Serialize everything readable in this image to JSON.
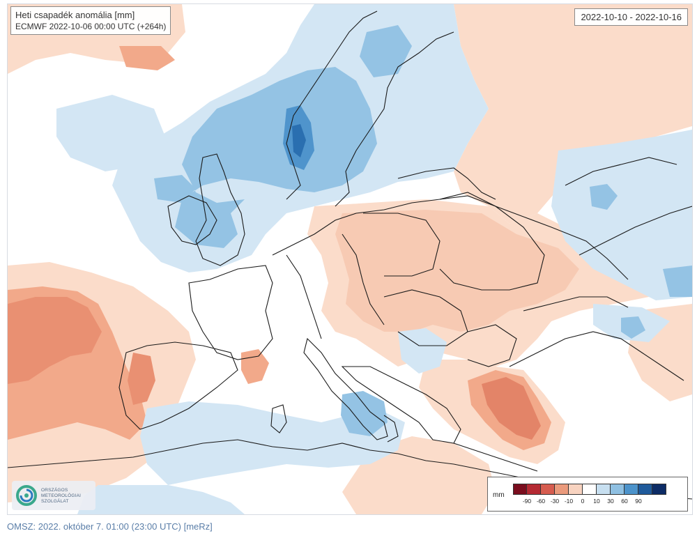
{
  "map": {
    "title": "Heti csapadék anomália [mm]",
    "subtitle": "ECMWF 2022-10-06 00:00 UTC (+264h)",
    "period": "2022-10-10 - 2022-10-16",
    "region": "Europe",
    "variable": "weekly precipitation anomaly"
  },
  "legend": {
    "unit": "mm",
    "ticks": [
      "-90",
      "-60",
      "-30",
      "-10",
      "0",
      "10",
      "30",
      "60",
      "90"
    ],
    "colors": [
      "#7a0d1e",
      "#b52a33",
      "#d65c4f",
      "#ea9a7c",
      "#f8d3c0",
      "#ffffff",
      "#c7dff0",
      "#8fc0e2",
      "#4c93cb",
      "#1f5a9b",
      "#0d2c66"
    ]
  },
  "colors": {
    "dry_light": "#fbdcca",
    "dry_medium": "#f2a98a",
    "dry_strong": "#df7a5f",
    "wet_light": "#d3e6f4",
    "wet_medium": "#94c3e4",
    "wet_strong": "#4f94cc",
    "wet_dark": "#2a6fb0",
    "borders": "#1a1a1a"
  },
  "logo": {
    "line1": "ORSZÁGOS",
    "line2": "METEOROLÓGIAI",
    "line3": "SZOLGÁLAT"
  },
  "footer": "OMSZ: 2022. október 7. 01:00 (23:00  UTC)  [meRz]"
}
